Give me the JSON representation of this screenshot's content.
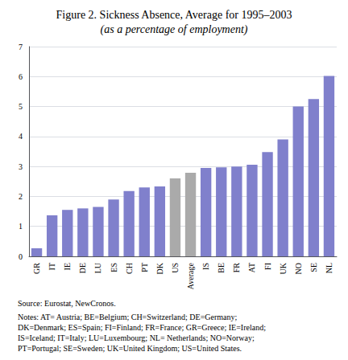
{
  "chart_data": {
    "type": "bar",
    "title": "Figure 2. Sickness Absence, Average for 1995–2003",
    "subtitle": "(as a percentage of employment)",
    "categories": [
      "GR",
      "IT",
      "IE",
      "DE",
      "LU",
      "ES",
      "CH",
      "PT",
      "DK",
      "US",
      "Average",
      "IS",
      "BE",
      "FR",
      "AT",
      "FI",
      "UK",
      "NO",
      "SE",
      "NL"
    ],
    "values": [
      0.27,
      1.37,
      1.55,
      1.6,
      1.65,
      1.9,
      2.18,
      2.3,
      2.33,
      2.6,
      2.79,
      2.95,
      2.97,
      3.0,
      3.06,
      3.48,
      3.9,
      5.0,
      5.25,
      6.02
    ],
    "colors": [
      "#8080cc",
      "#8080cc",
      "#8080cc",
      "#8080cc",
      "#8080cc",
      "#8080cc",
      "#8080cc",
      "#8080cc",
      "#8080cc",
      "#aaaaaa",
      "#aaaaaa",
      "#8080cc",
      "#8080cc",
      "#8080cc",
      "#8080cc",
      "#8080cc",
      "#8080cc",
      "#8080cc",
      "#8080cc",
      "#8080cc"
    ],
    "ylim": [
      0,
      7
    ],
    "yticks": [
      0,
      1,
      2,
      3,
      4,
      5,
      6,
      7
    ],
    "grid": true,
    "annotations": [
      "Source: Eurostat, NewCronos.",
      "Notes: AT= Austria; BE=Belgium; CH=Switzerland; DE=Germany;\nDK=Denmark; ES=Spain; FI=Finland; FR=France; GR=Greece; IE=Ireland;\nIS=Iceland; IT=Italy; LU=Luxembourg; NL= Netherlands; NO=Norway;\nPT=Portugal; SE=Sweden; UK=United Kingdom; US=United States."
    ]
  }
}
